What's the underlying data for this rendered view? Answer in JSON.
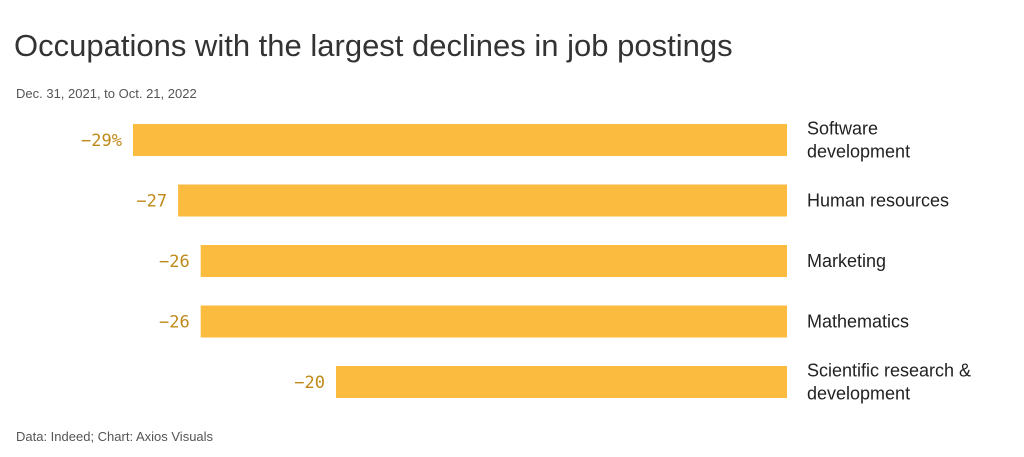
{
  "title": "Occupations with the largest declines in job postings",
  "subtitle": "Dec. 31, 2021, to Oct. 21, 2022",
  "source": "Data: Indeed; Chart: Axios Visuals",
  "colors": {
    "bar": "#FBBB3F",
    "value_label": "#C08A1A"
  },
  "chart_data": {
    "type": "bar",
    "orientation": "horizontal",
    "categories": [
      "Software development",
      "Human resources",
      "Marketing",
      "Mathematics",
      "Scientific research & development"
    ],
    "category_lines": [
      [
        "Software",
        "development"
      ],
      [
        "Human resources"
      ],
      [
        "Marketing"
      ],
      [
        "Mathematics"
      ],
      [
        "Scientific research &",
        "development"
      ]
    ],
    "values": [
      -29,
      -27,
      -26,
      -26,
      -20
    ],
    "value_labels": [
      "−29%",
      "−27",
      "−26",
      "−26",
      "−20"
    ],
    "unit": "%",
    "xlim": [
      -29,
      0
    ],
    "grid": false,
    "legend": "none"
  }
}
